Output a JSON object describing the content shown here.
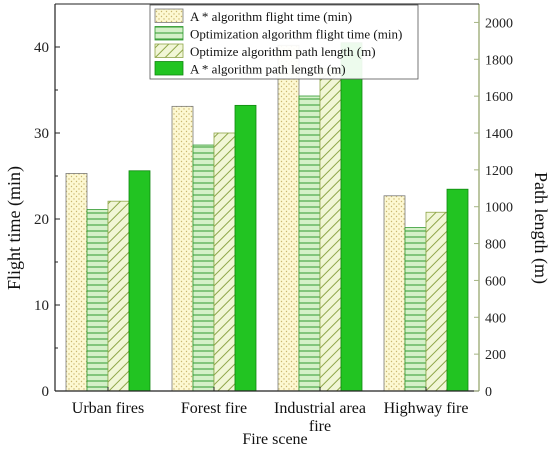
{
  "chart_data": {
    "type": "bar",
    "xlabel": "Fire scene",
    "ylabel_left": "Flight time (min)",
    "ylabel_right": "Path length (m)",
    "categories": [
      "Urban fires",
      "Forest fire",
      "Industrial area fire",
      "Highway fire"
    ],
    "category_lines": [
      [
        "Urban fires"
      ],
      [
        "Forest fire"
      ],
      [
        "Industrial area",
        "fire"
      ],
      [
        "Highway fire"
      ]
    ],
    "ylim_left": [
      0,
      45
    ],
    "yticks_left": [
      "0",
      "10",
      "20",
      "30",
      "40"
    ],
    "ylim_right": [
      0,
      2100
    ],
    "yticks_right": [
      "0",
      "200",
      "400",
      "600",
      "800",
      "1000",
      "1200",
      "1400",
      "1600",
      "1800",
      "2000"
    ],
    "series": [
      {
        "name": "A * algorithm flight time (min)",
        "axis": "left",
        "values": [
          25.3,
          33.1,
          40.2,
          22.7
        ],
        "fill": "#fdf8d2",
        "pattern": "dots",
        "pattern_color": "#c9b66e",
        "stroke": "#7a7a7a"
      },
      {
        "name": "Optimization algorithm flight time (min)",
        "axis": "left",
        "values": [
          21.1,
          28.6,
          34.3,
          19.0
        ],
        "fill": "#d4f0c8",
        "pattern": "horizontal",
        "pattern_color": "#2f9a2f",
        "stroke": "#2f9a2f"
      },
      {
        "name": "Optimize algorithm path length (m)",
        "axis": "right",
        "values": [
          1030,
          1400,
          1750,
          970
        ],
        "fill": "#f1f6d6",
        "pattern": "diagonal",
        "pattern_color": "#8fa64a",
        "stroke": "#8fa64a"
      },
      {
        "name": "A * algorithm path length (m)",
        "axis": "right",
        "values": [
          1195,
          1550,
          1890,
          1095
        ],
        "fill": "#22c422",
        "pattern": "solid",
        "pattern_color": "#22c422",
        "stroke": "#118811"
      }
    ],
    "left_axis_color": "#222222",
    "right_axis_color": "#a5b483",
    "grid": false,
    "legend_position": "top-left"
  }
}
